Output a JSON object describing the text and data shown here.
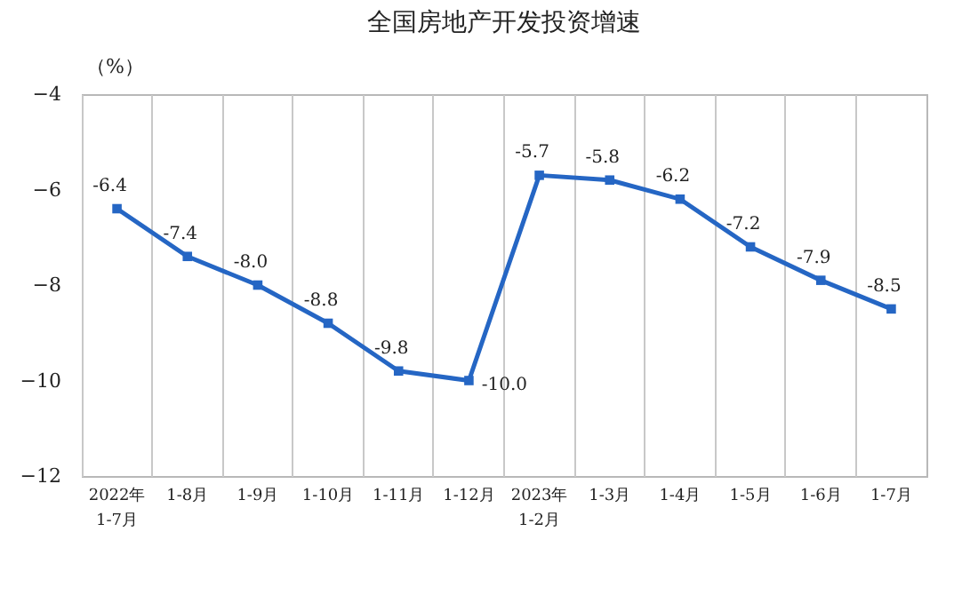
{
  "chart_data": {
    "type": "line",
    "title": "全国房地产开发投资增速",
    "ylabel": "（%）",
    "categories": [
      "2022年\n1-7月",
      "1-8月",
      "1-9月",
      "1-10月",
      "1-11月",
      "1-12月",
      "2023年\n1-2月",
      "1-3月",
      "1-4月",
      "1-5月",
      "1-6月",
      "1-7月"
    ],
    "series": [
      {
        "color": "#2566c4",
        "values": [
          -6.4,
          -7.4,
          -8.0,
          -8.8,
          -9.8,
          -10.0,
          -5.7,
          -5.8,
          -6.2,
          -7.2,
          -7.9,
          -8.5
        ],
        "value_labels": [
          "-6.4",
          "-7.4",
          "-8.0",
          "-8.8",
          "-9.8",
          "-10.0",
          "-5.7",
          "-5.8",
          "-6.2",
          "-7.2",
          "-7.9",
          "-8.5"
        ]
      }
    ],
    "ylim": [
      -12,
      -4
    ],
    "yticks": [
      -12,
      -10,
      -8,
      -6,
      -4
    ],
    "grid": "x",
    "marker": "square",
    "line_style": "solid"
  }
}
